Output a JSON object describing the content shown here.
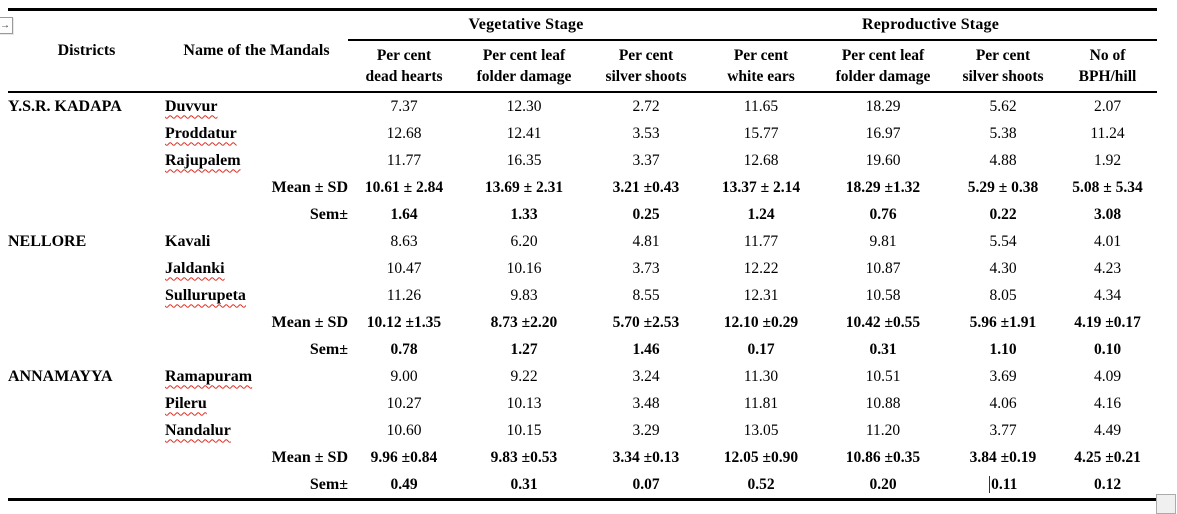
{
  "page": {
    "background": "#ffffff",
    "border_color": "#000000",
    "squiggle_color": "#e02b20"
  },
  "icons": {
    "move_handle": "table-move-handle-icon",
    "move_handle_glyph": "→",
    "resize_handle": "table-resize-handle"
  },
  "table": {
    "headers": {
      "districts": "Districts",
      "mandals": "Name of the Mandals",
      "vegetative": "Vegetative Stage",
      "reproductive": "Reproductive Stage"
    },
    "sub_headers": [
      [
        "Per cent",
        "dead hearts"
      ],
      [
        "Per cent leaf",
        "folder damage"
      ],
      [
        "Per cent",
        "silver shoots"
      ],
      [
        "Per cent",
        "white ears"
      ],
      [
        "Per cent leaf",
        "folder damage"
      ],
      [
        "Per cent",
        "silver shoots"
      ],
      [
        "No of",
        "BPH/hill"
      ]
    ],
    "groups": [
      {
        "district": "Y.S.R. KADAPA",
        "mandals": [
          {
            "name": "Duvvur",
            "misspelled": true,
            "values": [
              "7.37",
              "12.30",
              "2.72",
              "11.65",
              "18.29",
              "5.62",
              "2.07"
            ]
          },
          {
            "name": "Proddatur",
            "misspelled": true,
            "values": [
              "12.68",
              "12.41",
              "3.53",
              "15.77",
              "16.97",
              "5.38",
              "11.24"
            ]
          },
          {
            "name": "Rajupalem",
            "misspelled": true,
            "values": [
              "11.77",
              "16.35",
              "3.37",
              "12.68",
              "19.60",
              "4.88",
              "1.92"
            ]
          }
        ],
        "mean_sd": {
          "label": "Mean ± SD",
          "values": [
            "10.61 ± 2.84",
            "13.69 ± 2.31",
            "3.21 ±0.43",
            "13.37 ± 2.14",
            "18.29 ±1.32",
            "5.29 ± 0.38",
            "5.08 ± 5.34"
          ]
        },
        "sem": {
          "label": "Sem±",
          "values": [
            "1.64",
            "1.33",
            "0.25",
            "1.24",
            "0.76",
            "0.22",
            "3.08"
          ]
        }
      },
      {
        "district": "NELLORE",
        "mandals": [
          {
            "name": "Kavali",
            "misspelled": false,
            "values": [
              "8.63",
              "6.20",
              "4.81",
              "11.77",
              "9.81",
              "5.54",
              "4.01"
            ]
          },
          {
            "name": "Jaldanki",
            "misspelled": true,
            "values": [
              "10.47",
              "10.16",
              "3.73",
              "12.22",
              "10.87",
              "4.30",
              "4.23"
            ]
          },
          {
            "name": "Sullurupeta",
            "misspelled": true,
            "values": [
              "11.26",
              "9.83",
              "8.55",
              "12.31",
              "10.58",
              "8.05",
              "4.34"
            ]
          }
        ],
        "mean_sd": {
          "label": "Mean ± SD",
          "values": [
            "10.12 ±1.35",
            "8.73 ±2.20",
            "5.70 ±2.53",
            "12.10 ±0.29",
            "10.42 ±0.55",
            "5.96 ±1.91",
            "4.19 ±0.17"
          ]
        },
        "sem": {
          "label": "Sem±",
          "values": [
            "0.78",
            "1.27",
            "1.46",
            "0.17",
            "0.31",
            "1.10",
            "0.10"
          ]
        }
      },
      {
        "district": "ANNAMAYYA",
        "mandals": [
          {
            "name": "Ramapuram",
            "misspelled": true,
            "values": [
              "9.00",
              "9.22",
              "3.24",
              "11.30",
              "10.51",
              "3.69",
              "4.09"
            ]
          },
          {
            "name": "Pileru",
            "misspelled": true,
            "values": [
              "10.27",
              "10.13",
              "3.48",
              "11.81",
              "10.88",
              "4.06",
              "4.16"
            ]
          },
          {
            "name": "Nandalur",
            "misspelled": true,
            "values": [
              "10.60",
              "10.15",
              "3.29",
              "13.05",
              "11.20",
              "3.77",
              "4.49"
            ]
          }
        ],
        "mean_sd": {
          "label": "Mean ± SD",
          "values": [
            "9.96 ±0.84",
            "9.83 ±0.53",
            "3.34 ±0.13",
            "12.05 ±0.90",
            "10.86 ±0.35",
            "3.84 ±0.19",
            "4.25 ±0.21"
          ]
        },
        "sem": {
          "label": "Sem±",
          "values": [
            "0.49",
            "0.31",
            "0.07",
            "0.52",
            "0.20",
            "0.11",
            "0.12"
          ],
          "caret_before_index": 5
        }
      }
    ]
  }
}
